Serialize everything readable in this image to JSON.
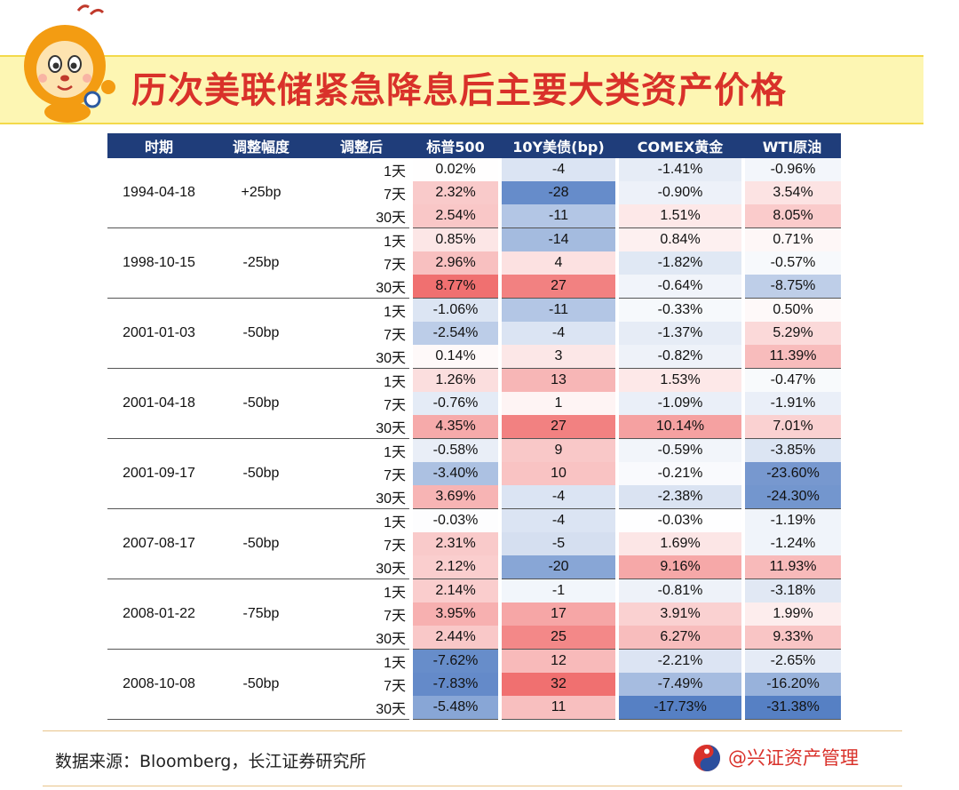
{
  "title": "历次美联储紧急降息后主要大类资产价格",
  "headers": [
    "时期",
    "调整幅度",
    "调整后",
    "标普500",
    "10Y美债(bp)",
    "COMEX黄金",
    "WTI原油"
  ],
  "periods": [
    "1天",
    "7天",
    "30天"
  ],
  "groups": [
    {
      "date": "1994-04-18",
      "adj": "+25bp",
      "rows": [
        [
          "0.02%",
          "-4",
          "-1.41%",
          "-0.96%"
        ],
        [
          "2.32%",
          "-28",
          "-0.90%",
          "3.54%"
        ],
        [
          "2.54%",
          "-11",
          "1.51%",
          "8.05%"
        ]
      ]
    },
    {
      "date": "1998-10-15",
      "adj": "-25bp",
      "rows": [
        [
          "0.85%",
          "-14",
          "0.84%",
          "0.71%"
        ],
        [
          "2.96%",
          "4",
          "-1.82%",
          "-0.57%"
        ],
        [
          "8.77%",
          "27",
          "-0.64%",
          "-8.75%"
        ]
      ]
    },
    {
      "date": "2001-01-03",
      "adj": "-50bp",
      "rows": [
        [
          "-1.06%",
          "-11",
          "-0.33%",
          "0.50%"
        ],
        [
          "-2.54%",
          "-4",
          "-1.37%",
          "5.29%"
        ],
        [
          "0.14%",
          "3",
          "-0.82%",
          "11.39%"
        ]
      ]
    },
    {
      "date": "2001-04-18",
      "adj": "-50bp",
      "rows": [
        [
          "1.26%",
          "13",
          "1.53%",
          "-0.47%"
        ],
        [
          "-0.76%",
          "1",
          "-1.09%",
          "-1.91%"
        ],
        [
          "4.35%",
          "27",
          "10.14%",
          "7.01%"
        ]
      ]
    },
    {
      "date": "2001-09-17",
      "adj": "-50bp",
      "rows": [
        [
          "-0.58%",
          "9",
          "-0.59%",
          "-3.85%"
        ],
        [
          "-3.40%",
          "10",
          "-0.21%",
          "-23.60%"
        ],
        [
          "3.69%",
          "-4",
          "-2.38%",
          "-24.30%"
        ]
      ]
    },
    {
      "date": "2007-08-17",
      "adj": "-50bp",
      "rows": [
        [
          "-0.03%",
          "-4",
          "-0.03%",
          "-1.19%"
        ],
        [
          "2.31%",
          "-5",
          "1.69%",
          "-1.24%"
        ],
        [
          "2.12%",
          "-20",
          "9.16%",
          "11.93%"
        ]
      ]
    },
    {
      "date": "2008-01-22",
      "adj": "-75bp",
      "rows": [
        [
          "2.14%",
          "-1",
          "-0.81%",
          "-3.18%"
        ],
        [
          "3.95%",
          "17",
          "3.91%",
          "1.99%"
        ],
        [
          "2.44%",
          "25",
          "6.27%",
          "9.33%"
        ]
      ]
    },
    {
      "date": "2008-10-08",
      "adj": "-50bp",
      "rows": [
        [
          "-7.62%",
          "12",
          "-2.21%",
          "-2.65%"
        ],
        [
          "-7.83%",
          "32",
          "-7.49%",
          "-16.20%"
        ],
        [
          "-5.48%",
          "11",
          "-17.73%",
          "-31.38%"
        ]
      ]
    }
  ],
  "footer": {
    "source": "数据来源：Bloomberg，长江证券研究所",
    "brand": "@兴证资产管理"
  },
  "colors": {
    "header_bg": "#1f3d7a",
    "title_red": "#d9312a",
    "pos_max": "#f07a7a",
    "neg_max": "#5b86c8"
  }
}
